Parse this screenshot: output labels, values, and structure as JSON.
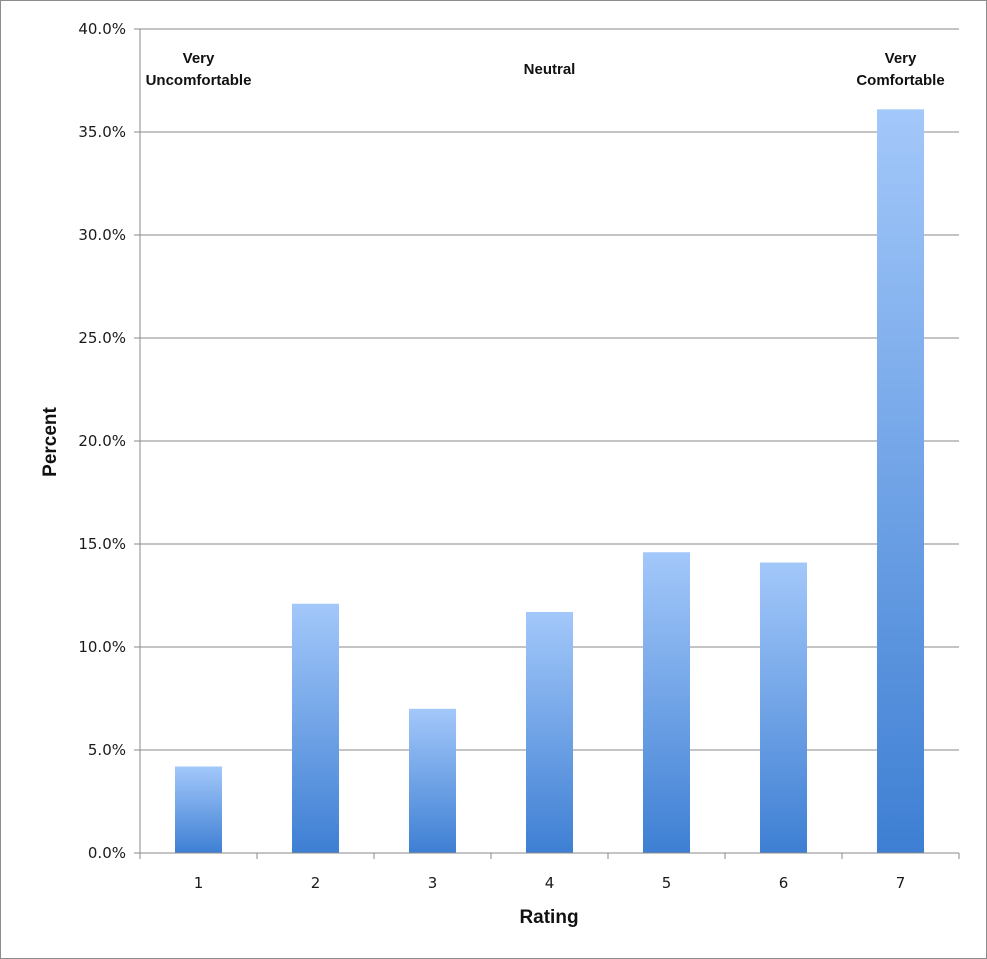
{
  "chart_data": {
    "type": "bar",
    "title": "",
    "xlabel": "Rating",
    "ylabel": "Percent",
    "categories": [
      "1",
      "2",
      "3",
      "4",
      "5",
      "6",
      "7"
    ],
    "values": [
      4.2,
      12.1,
      7.0,
      11.7,
      14.6,
      14.1,
      36.1
    ],
    "ylim": [
      0,
      40
    ],
    "y_ticks": [
      "0.0%",
      "5.0%",
      "10.0%",
      "15.0%",
      "20.0%",
      "25.0%",
      "30.0%",
      "35.0%",
      "40.0%"
    ],
    "grid": true,
    "legend": "none",
    "bar_gradient": {
      "top": "#a3c8fa",
      "bottom": "#3e7fd3"
    },
    "annotations": [
      {
        "category": "1",
        "lines": [
          "Very",
          "Uncomfortable"
        ]
      },
      {
        "category": "4",
        "lines": [
          "Neutral"
        ]
      },
      {
        "category": "7",
        "lines": [
          "Very",
          "Comfortable"
        ]
      }
    ]
  }
}
